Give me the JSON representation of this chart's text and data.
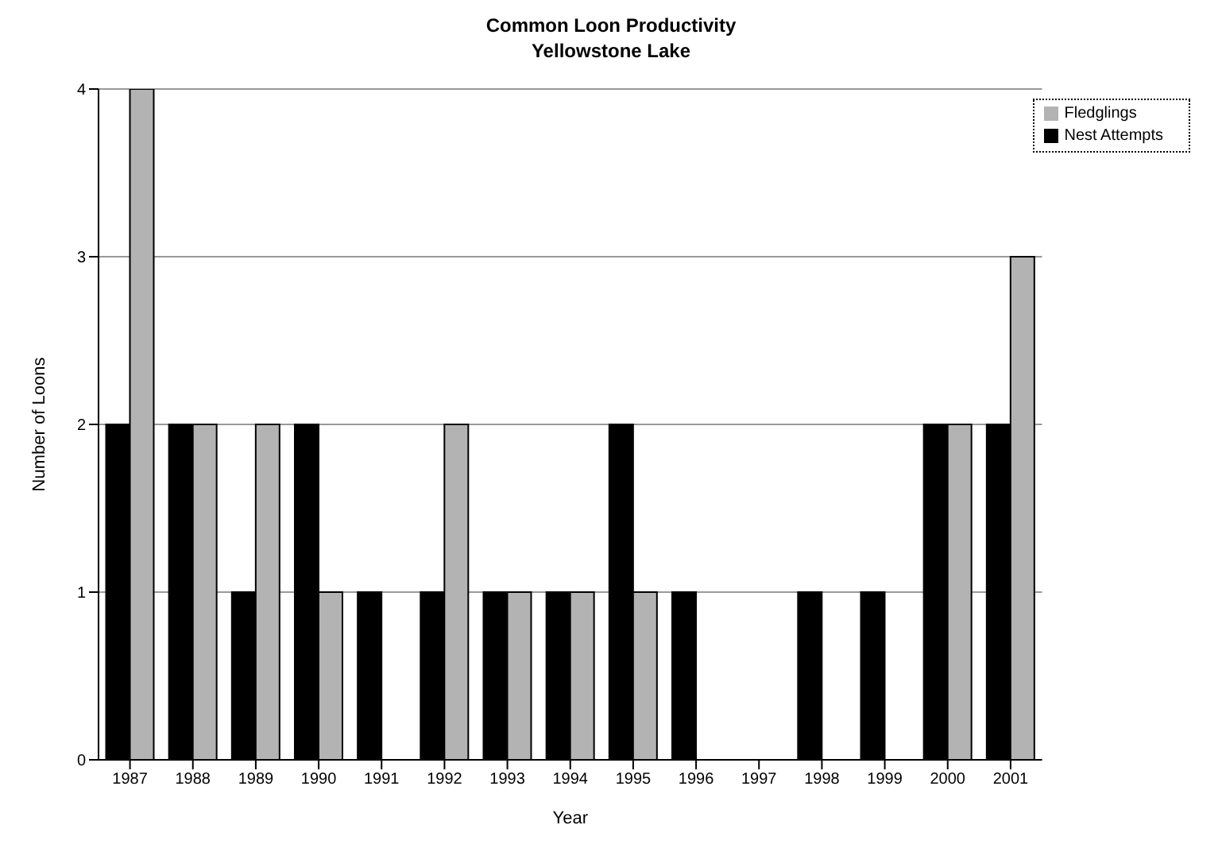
{
  "chart_data": {
    "type": "bar",
    "title": "Common Loon Productivity",
    "subtitle": "Yellowstone Lake",
    "xlabel": "Year",
    "ylabel": "Number of Loons",
    "categories": [
      "1987",
      "1988",
      "1989",
      "1990",
      "1991",
      "1992",
      "1993",
      "1994",
      "1995",
      "1996",
      "1997",
      "1998",
      "1999",
      "2000",
      "2001"
    ],
    "series": [
      {
        "name": "Nest Attempts",
        "color": "#000000",
        "values": [
          2,
          2,
          1,
          2,
          1,
          1,
          1,
          1,
          2,
          1,
          0,
          1,
          1,
          2,
          2
        ]
      },
      {
        "name": "Fledglings",
        "color": "#b3b3b3",
        "values": [
          4,
          2,
          2,
          1,
          0,
          2,
          1,
          1,
          1,
          0,
          0,
          0,
          0,
          2,
          3
        ]
      }
    ],
    "ylim": [
      0,
      4
    ],
    "yticks": [
      0,
      1,
      2,
      3,
      4
    ],
    "grid": "y",
    "legend": "top right"
  }
}
